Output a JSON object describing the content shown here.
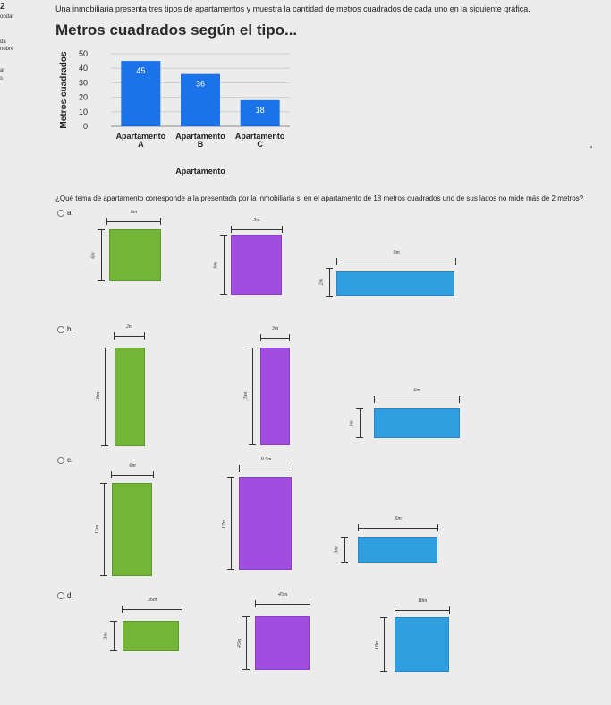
{
  "sidebar": {
    "question_number": "2",
    "label_1": "ondar",
    "label_2": "da",
    "label_3": "nobre",
    "label_4": "ar",
    "label_5": "s"
  },
  "intro_text": "Una inmobiliaria presenta tres tipos de apartamentos y muestra la cantidad de metros cuadrados de cada uno en la siguiente gráfica.",
  "chart_data": {
    "type": "bar",
    "title": "Metros cuadrados según el tipo...",
    "xlabel": "Apartamento",
    "ylabel": "Metros cuadrados",
    "categories": [
      "Apartamento A",
      "Apartamento B",
      "Apartamento C"
    ],
    "category_lines": [
      [
        "Apartamento",
        "A"
      ],
      [
        "Apartamento",
        "B"
      ],
      [
        "Apartamento",
        "C"
      ]
    ],
    "values": [
      45,
      36,
      18
    ],
    "value_labels": [
      "45",
      "36",
      "18"
    ],
    "ylim": [
      0,
      50
    ],
    "yticks": [
      0,
      10,
      20,
      30,
      40,
      50
    ],
    "ytick_labels": [
      "0",
      "10",
      "20",
      "30",
      "40",
      "50"
    ],
    "grid": true,
    "bar_color": "#1a73e8"
  },
  "question_text": "¿Qué tema de apartamento corresponde a la presentada por la inmobiliaria si en el apartamento de 18 metros cuadrados uno de sus lados no mide más de 2 metros?",
  "options": {
    "a": {
      "label": "a.",
      "green": {
        "top": "6m",
        "side": "6m"
      },
      "purple": {
        "top": "5m",
        "side": "9m"
      },
      "blue": {
        "top": "9m",
        "side": "2m"
      }
    },
    "b": {
      "label": "b.",
      "green": {
        "top": "2m",
        "side": "18m"
      },
      "purple": {
        "top": "3m",
        "side": "15m"
      },
      "blue": {
        "top": "6m",
        "side": "3m"
      }
    },
    "c": {
      "label": "c.",
      "green": {
        "top": "6m",
        "side": "12m"
      },
      "purple": {
        "top": "9.5m",
        "side": "17m"
      },
      "blue": {
        "top": "6m",
        "side": "3m"
      }
    },
    "d": {
      "label": "d.",
      "green": {
        "top": "36m",
        "side": "3m"
      },
      "purple": {
        "top": "45m",
        "side": "45m"
      },
      "blue": {
        "top": "18m",
        "side": "18m"
      }
    }
  },
  "colors": {
    "green": "#74b538",
    "purple": "#a04de0",
    "blue": "#2f9fe0"
  }
}
